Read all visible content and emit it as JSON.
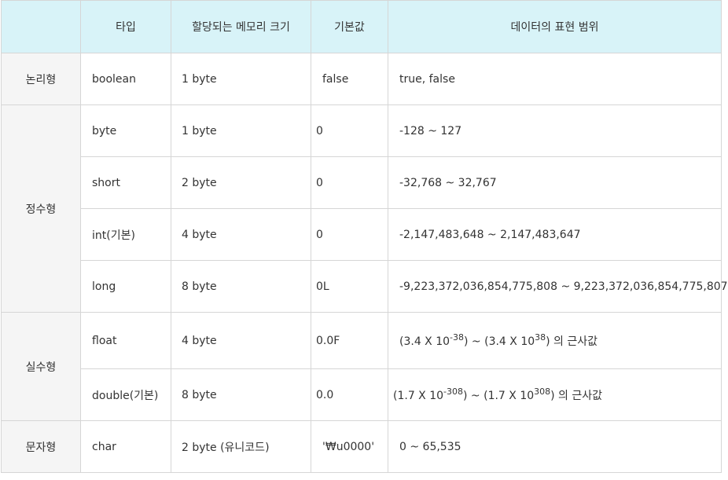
{
  "header": {
    "col_category": "",
    "col_type": "타입",
    "col_size": "할당되는 메모리 크기",
    "col_default": "기본값",
    "col_range": "데이터의 표현 범위"
  },
  "groups": {
    "logical": "논리형",
    "integer": "정수형",
    "real": "실수형",
    "character": "문자형"
  },
  "rows": [
    {
      "type": "boolean",
      "size": "1 byte",
      "default": "false",
      "range": "true, false"
    },
    {
      "type": "byte",
      "size": "1 byte",
      "default": "0",
      "range": "-128 ~ 127"
    },
    {
      "type": "short",
      "size": "2 byte",
      "default": "0",
      "range": "-32,768 ~ 32,767"
    },
    {
      "type": "int(기본)",
      "size": "4 byte",
      "default": "0",
      "range": "-2,147,483,648 ~ 2,147,483,647"
    },
    {
      "type": "long",
      "size": "8 byte",
      "default": "0L",
      "range": "-9,223,372,036,854,775,808 ~ 9,223,372,036,854,775,807"
    },
    {
      "type": "float",
      "size": "4 byte",
      "default": "0.0F",
      "range_parts": {
        "a": "(3.4 X 10",
        "a_exp": "-38",
        "b": ") ~ (3.4 X 10",
        "b_exp": "38",
        "c": ") 의 근사값"
      }
    },
    {
      "type": "double(기본)",
      "size": "8 byte",
      "default": "0.0",
      "range_parts": {
        "a": "(1.7 X 10",
        "a_exp": "-308",
        "b": ") ~ (1.7 X 10",
        "b_exp": "308",
        "c": ") 의 근사값"
      }
    },
    {
      "type": "char",
      "size": "2 byte (유니코드)",
      "default": "'₩u0000'",
      "range": "0 ~ 65,535"
    }
  ]
}
